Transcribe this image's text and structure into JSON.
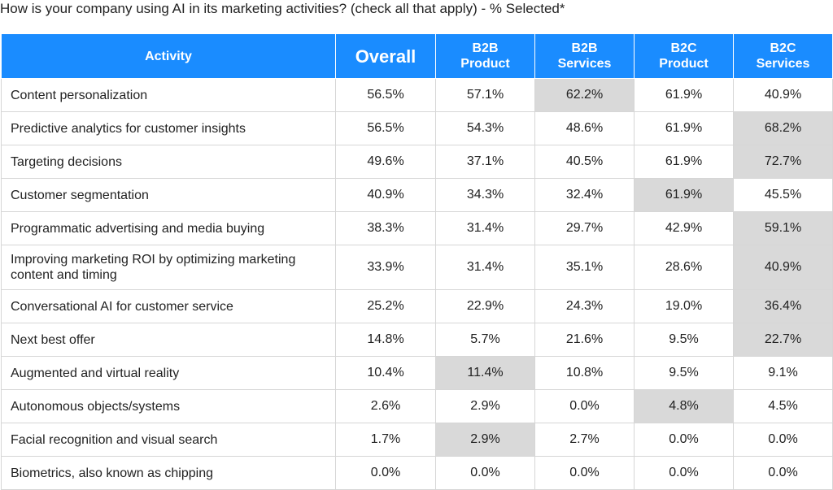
{
  "title": "How is your company using AI in its marketing activities? (check all that apply) - % Selected*",
  "colors": {
    "header_bg": "#1a8cff",
    "header_text": "#ffffff",
    "highlight_bg": "#d9d9d9",
    "grid": "#d6d6d6"
  },
  "chart_data": {
    "type": "table",
    "title": "How is your company using AI in its marketing activities? (check all that apply) - % Selected*",
    "columns": [
      {
        "key": "activity",
        "label": "Activity"
      },
      {
        "key": "overall",
        "label": "Overall"
      },
      {
        "key": "b2b_product",
        "label": "B2B\nProduct"
      },
      {
        "key": "b2b_services",
        "label": "B2B\nServices"
      },
      {
        "key": "b2c_product",
        "label": "B2C\nProduct"
      },
      {
        "key": "b2c_services",
        "label": "B2C\nServices"
      }
    ],
    "rows": [
      {
        "activity": "Content personalization",
        "values": [
          "56.5%",
          "57.1%",
          "62.2%",
          "61.9%",
          "40.9%"
        ],
        "highlight": [
          2
        ]
      },
      {
        "activity": "Predictive analytics for customer insights",
        "values": [
          "56.5%",
          "54.3%",
          "48.6%",
          "61.9%",
          "68.2%"
        ],
        "highlight": [
          4
        ]
      },
      {
        "activity": "Targeting decisions",
        "values": [
          "49.6%",
          "37.1%",
          "40.5%",
          "61.9%",
          "72.7%"
        ],
        "highlight": [
          4
        ]
      },
      {
        "activity": "Customer segmentation",
        "values": [
          "40.9%",
          "34.3%",
          "32.4%",
          "61.9%",
          "45.5%"
        ],
        "highlight": [
          3
        ]
      },
      {
        "activity": "Programmatic advertising and media buying",
        "values": [
          "38.3%",
          "31.4%",
          "29.7%",
          "42.9%",
          "59.1%"
        ],
        "highlight": [
          4
        ]
      },
      {
        "activity": "Improving marketing ROI by optimizing marketing content and timing",
        "values": [
          "33.9%",
          "31.4%",
          "35.1%",
          "28.6%",
          "40.9%"
        ],
        "highlight": [
          4
        ]
      },
      {
        "activity": "Conversational AI for customer service",
        "values": [
          "25.2%",
          "22.9%",
          "24.3%",
          "19.0%",
          "36.4%"
        ],
        "highlight": [
          4
        ]
      },
      {
        "activity": "Next best offer",
        "values": [
          "14.8%",
          "5.7%",
          "21.6%",
          "9.5%",
          "22.7%"
        ],
        "highlight": [
          4
        ]
      },
      {
        "activity": "Augmented and virtual reality",
        "values": [
          "10.4%",
          "11.4%",
          "10.8%",
          "9.5%",
          "9.1%"
        ],
        "highlight": [
          1
        ]
      },
      {
        "activity": "Autonomous objects/systems",
        "values": [
          "2.6%",
          "2.9%",
          "0.0%",
          "4.8%",
          "4.5%"
        ],
        "highlight": [
          3
        ]
      },
      {
        "activity": "Facial recognition and visual search",
        "values": [
          "1.7%",
          "2.9%",
          "2.7%",
          "0.0%",
          "0.0%"
        ],
        "highlight": [
          1
        ]
      },
      {
        "activity": "Biometrics, also known as chipping",
        "values": [
          "0.0%",
          "0.0%",
          "0.0%",
          "0.0%",
          "0.0%"
        ],
        "highlight": []
      }
    ]
  }
}
